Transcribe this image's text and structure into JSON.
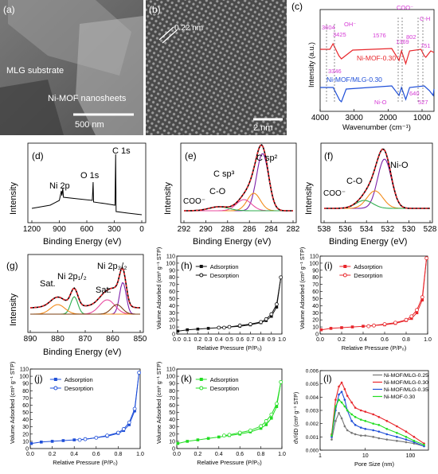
{
  "panels": {
    "a": {
      "label": "(a)",
      "labels": {
        "substrate": "MLG substrate",
        "sheets": "Ni-MOF nanosheets",
        "scale": "500 nm"
      }
    },
    "b": {
      "label": "(b)",
      "labels": {
        "spacing": "0.22 nm",
        "scale": "2 nm"
      }
    },
    "c": {
      "label": "(c)",
      "type": "line",
      "ylabel": "Intensity (a.u.)",
      "xlabel": "Wavenumber (cm⁻¹)",
      "xticks": [
        "4000",
        "3000",
        "2000",
        "1000"
      ],
      "xlim": [
        4000,
        500
      ],
      "series": [
        {
          "name": "Ni-MOF-0.30",
          "color": "#e8262b"
        },
        {
          "name": "Ni-MOF/MLG-0.30",
          "color": "#1f4fd8"
        }
      ],
      "peaks": [
        "3604",
        "OH⁻",
        "3425",
        "3346",
        "1576",
        "COO⁻",
        "1369",
        "802",
        "C-H",
        "751",
        "640",
        "Ni-O",
        "527"
      ],
      "peak_color": "#d63bd6"
    },
    "d": {
      "label": "(d)",
      "type": "line",
      "ylabel": "Intensity",
      "xlabel": "Binding Energy (eV)",
      "xticks": [
        "1200",
        "900",
        "600",
        "300",
        "0"
      ],
      "xlim": [
        1200,
        0
      ],
      "annotations": [
        "Ni 2p",
        "O 1s",
        "C 1s"
      ]
    },
    "e": {
      "label": "(e)",
      "type": "line",
      "ylabel": "Intensity",
      "xlabel": "Binding Energy (eV)",
      "xticks": [
        "292",
        "290",
        "288",
        "286",
        "284",
        "282"
      ],
      "xlim": [
        292,
        282
      ],
      "annotations": [
        "C sp²",
        "C sp³",
        "C-O",
        "COO⁻"
      ]
    },
    "f": {
      "label": "(f)",
      "type": "line",
      "ylabel": "Intensity",
      "xlabel": "Binding Energy (eV)",
      "xticks": [
        "538",
        "536",
        "534",
        "532",
        "530",
        "528"
      ],
      "xlim": [
        538,
        528
      ],
      "annotations": [
        "Ni-O",
        "C-O",
        "COO⁻"
      ]
    },
    "g": {
      "label": "(g)",
      "type": "line",
      "ylabel": "Intensity",
      "xlabel": "Binding Energy (eV)",
      "xticks": [
        "890",
        "880",
        "870",
        "860",
        "850"
      ],
      "xlim": [
        890,
        850
      ],
      "annotations": [
        "Sat.",
        "Ni 2p₁/₂",
        "Sat.",
        "Ni 2p₃/₂"
      ]
    },
    "h": {
      "label": "(h)",
      "color": "#111111",
      "ylabel": "Volume Adsorbed (cm³ g⁻¹ STP)",
      "xlabel": "Relative Pressure (P/P₀)",
      "legend": [
        "Adsorption",
        "Desorption"
      ],
      "xticks": [
        "0.0",
        "0.1",
        "0.2",
        "0.3",
        "0.4",
        "0.5",
        "0.6",
        "0.7",
        "0.8",
        "0.9",
        "1.0"
      ],
      "yticks": [
        "0",
        "10",
        "20",
        "30",
        "40",
        "50",
        "60",
        "70",
        "80",
        "90",
        "100",
        "110"
      ],
      "ylim": [
        0,
        110
      ],
      "ymax_reached": 80
    },
    "i": {
      "label": "(i)",
      "color": "#e8262b",
      "ylabel": "Volume Adsorbed (cm³ g⁻¹ STP)",
      "xlabel": "Relative Pressure (P/P₀)",
      "legend": [
        "Adsorption",
        "Desorption"
      ],
      "xticks": [
        "0.0",
        "0.2",
        "0.4",
        "0.6",
        "0.8",
        "1.0"
      ],
      "yticks": [
        "0",
        "10",
        "20",
        "30",
        "40",
        "50",
        "60",
        "70",
        "80",
        "90",
        "100",
        "110"
      ],
      "ylim": [
        0,
        110
      ],
      "ymax_reached": 107
    },
    "j": {
      "label": "(j)",
      "color": "#1f4fd8",
      "ylabel": "Volume Adsorbed (cm³ g⁻¹ STP)",
      "xlabel": "Relative Pressure (P/P₀)",
      "legend": [
        "Adsorption",
        "Desorption"
      ],
      "xticks": [
        "0.0",
        "0.2",
        "0.4",
        "0.6",
        "0.8",
        "1.0"
      ],
      "yticks": [
        "0",
        "10",
        "20",
        "30",
        "40",
        "50",
        "60",
        "70",
        "80",
        "90",
        "100",
        "110"
      ],
      "ylim": [
        0,
        110
      ],
      "ymax_reached": 105
    },
    "k": {
      "label": "(k)",
      "color": "#22dd22",
      "ylabel": "Volume Adsorbed (cm³ g⁻¹ STP)",
      "xlabel": "Relative Pressure (P/P₀)",
      "legend": [
        "Adsorption",
        "Desorption"
      ],
      "xticks": [
        "0.0",
        "0.2",
        "0.4",
        "0.6",
        "0.8",
        "1.0"
      ],
      "yticks": [
        "0",
        "10",
        "20",
        "30",
        "40",
        "50",
        "60",
        "70",
        "80",
        "90",
        "100",
        "110"
      ],
      "ylim": [
        0,
        110
      ],
      "ymax_reached": 92
    },
    "l": {
      "label": "(l)",
      "ylabel": "dV/dD (cm³ g⁻¹ STP)",
      "xlabel": "Pore Size (nm)",
      "xticks": [
        "1",
        "10",
        "100"
      ],
      "yticks": [
        "0.000",
        "0.001",
        "0.002",
        "0.003",
        "0.004",
        "0.005",
        "0.006"
      ],
      "ylim": [
        0,
        0.006
      ],
      "series": [
        {
          "name": "Ni-MOF/MLG-0.25",
          "color": "#777777"
        },
        {
          "name": "Ni-MOF/MLG-0.30",
          "color": "#e8262b"
        },
        {
          "name": "Ni-MOF/MLG-0.35",
          "color": "#1f4fd8"
        },
        {
          "name": "Ni-MOF-0.30",
          "color": "#22dd22"
        }
      ]
    }
  },
  "chart_data": [
    {
      "type": "line",
      "panel": "c",
      "xlabel": "Wavenumber (cm⁻¹)",
      "ylabel": "Intensity (a.u.)",
      "xlim": [
        4000,
        500
      ],
      "series": [
        {
          "name": "Ni-MOF-0.30",
          "peaks": [
            3604,
            3425,
            3346,
            1576,
            1369,
            802,
            751
          ]
        },
        {
          "name": "Ni-MOF/MLG-0.30",
          "peaks": [
            3346,
            1576,
            1369,
            640,
            527
          ]
        }
      ]
    },
    {
      "type": "line",
      "panel": "d",
      "xlabel": "Binding Energy (eV)",
      "ylabel": "Intensity",
      "xlim": [
        1200,
        0
      ],
      "series": [
        {
          "name": "",
          "peaks": [
            {
              "x": 860,
              "label": "Ni 2p"
            },
            {
              "x": 531,
              "label": "O 1s"
            },
            {
              "x": 285,
              "label": "C 1s"
            }
          ]
        }
      ]
    },
    {
      "type": "line",
      "panel": "e",
      "xlabel": "Binding Energy (eV)",
      "ylabel": "Intensity",
      "xlim": [
        292,
        282
      ],
      "series": [
        {
          "name": "",
          "peaks": [
            {
              "x": 284.8,
              "label": "C sp²"
            },
            {
              "x": 285.6,
              "label": "C sp³"
            },
            {
              "x": 286.5,
              "label": "C-O"
            },
            {
              "x": 288.8,
              "label": "COO⁻"
            }
          ]
        }
      ]
    },
    {
      "type": "line",
      "panel": "f",
      "xlabel": "Binding Energy (eV)",
      "ylabel": "Intensity",
      "xlim": [
        538,
        528
      ],
      "series": [
        {
          "name": "",
          "peaks": [
            {
              "x": 532.3,
              "label": "Ni-O"
            },
            {
              "x": 533.2,
              "label": "C-O"
            },
            {
              "x": 534.2,
              "label": "COO⁻"
            }
          ]
        }
      ]
    },
    {
      "type": "line",
      "panel": "g",
      "xlabel": "Binding Energy (eV)",
      "ylabel": "Intensity",
      "xlim": [
        890,
        850
      ],
      "series": [
        {
          "name": "",
          "peaks": [
            {
              "x": 880,
              "label": "Sat."
            },
            {
              "x": 874,
              "label": "Ni 2p₁/₂"
            },
            {
              "x": 862,
              "label": "Sat."
            },
            {
              "x": 856.5,
              "label": "Ni 2p₃/₂"
            }
          ]
        }
      ]
    },
    {
      "type": "scatter",
      "panel": "h",
      "xlabel": "Relative Pressure (P/P₀)",
      "ylabel": "Volume Adsorbed (cm³ g⁻¹ STP)",
      "xlim": [
        0,
        1
      ],
      "ylim": [
        0,
        110
      ],
      "series": [
        {
          "name": "Adsorption",
          "x": [
            0.01,
            0.1,
            0.2,
            0.3,
            0.4,
            0.5,
            0.6,
            0.7,
            0.8,
            0.85,
            0.9,
            0.95,
            0.99
          ],
          "y": [
            4,
            6,
            7,
            8,
            9,
            10,
            11,
            13,
            16,
            19,
            25,
            38,
            80
          ]
        },
        {
          "name": "Desorption",
          "x": [
            0.99,
            0.95,
            0.9,
            0.85,
            0.8,
            0.7,
            0.6,
            0.5,
            0.45,
            0.4
          ],
          "y": [
            80,
            42,
            28,
            21,
            17,
            14,
            12,
            10,
            9,
            9
          ]
        }
      ]
    },
    {
      "type": "scatter",
      "panel": "i",
      "xlabel": "Relative Pressure (P/P₀)",
      "ylabel": "Volume Adsorbed (cm³ g⁻¹ STP)",
      "xlim": [
        0,
        1
      ],
      "ylim": [
        0,
        110
      ],
      "series": [
        {
          "name": "Adsorption",
          "x": [
            0.01,
            0.1,
            0.2,
            0.3,
            0.4,
            0.5,
            0.6,
            0.7,
            0.8,
            0.85,
            0.9,
            0.95,
            0.99
          ],
          "y": [
            6,
            8,
            9,
            10,
            11,
            12,
            13,
            15,
            19,
            22,
            30,
            48,
            107
          ]
        },
        {
          "name": "Desorption",
          "x": [
            0.99,
            0.95,
            0.9,
            0.85,
            0.8,
            0.7,
            0.6,
            0.5,
            0.45
          ],
          "y": [
            107,
            52,
            34,
            25,
            20,
            16,
            14,
            12,
            11
          ]
        }
      ]
    },
    {
      "type": "scatter",
      "panel": "j",
      "xlabel": "Relative Pressure (P/P₀)",
      "ylabel": "Volume Adsorbed (cm³ g⁻¹ STP)",
      "xlim": [
        0,
        1
      ],
      "ylim": [
        0,
        110
      ],
      "series": [
        {
          "name": "Adsorption",
          "x": [
            0.01,
            0.1,
            0.2,
            0.3,
            0.4,
            0.5,
            0.6,
            0.7,
            0.8,
            0.85,
            0.9,
            0.95,
            0.99
          ],
          "y": [
            7,
            9,
            10,
            11,
            12,
            13,
            15,
            17,
            21,
            25,
            33,
            52,
            105
          ]
        },
        {
          "name": "Desorption",
          "x": [
            0.99,
            0.95,
            0.9,
            0.85,
            0.8,
            0.7,
            0.6,
            0.5,
            0.45
          ],
          "y": [
            105,
            55,
            36,
            27,
            22,
            18,
            15,
            13,
            12
          ]
        }
      ]
    },
    {
      "type": "scatter",
      "panel": "k",
      "xlabel": "Relative Pressure (P/P₀)",
      "ylabel": "Volume Adsorbed (cm³ g⁻¹ STP)",
      "xlim": [
        0,
        1
      ],
      "ylim": [
        0,
        110
      ],
      "series": [
        {
          "name": "Adsorption",
          "x": [
            0.01,
            0.1,
            0.2,
            0.3,
            0.4,
            0.5,
            0.6,
            0.7,
            0.8,
            0.85,
            0.9,
            0.95,
            0.99
          ],
          "y": [
            7,
            10,
            12,
            14,
            16,
            18,
            20,
            23,
            28,
            33,
            42,
            58,
            92
          ]
        },
        {
          "name": "Desorption",
          "x": [
            0.99,
            0.95,
            0.9,
            0.85,
            0.8,
            0.7,
            0.6,
            0.5,
            0.45
          ],
          "y": [
            92,
            62,
            47,
            38,
            31,
            25,
            22,
            19,
            18
          ]
        }
      ]
    },
    {
      "type": "line",
      "panel": "l",
      "xlabel": "Pore Size (nm)",
      "ylabel": "dV/dD (cm³ g⁻¹ STP)",
      "xscale": "log",
      "xlim": [
        1,
        200
      ],
      "ylim": [
        0,
        0.006
      ],
      "series": [
        {
          "name": "Ni-MOF/MLG-0.25",
          "x": [
            1.8,
            2.2,
            2.6,
            3,
            3.5,
            4,
            5,
            6,
            8,
            10,
            15,
            20,
            30,
            50,
            80,
            120,
            200
          ],
          "y": [
            0.0008,
            0.0022,
            0.0028,
            0.0024,
            0.0018,
            0.0015,
            0.0013,
            0.0012,
            0.0011,
            0.0011,
            0.001,
            0.0009,
            0.0008,
            0.0007,
            0.0006,
            0.0005,
            0.0003
          ]
        },
        {
          "name": "Ni-MOF/MLG-0.30",
          "x": [
            1.8,
            2.2,
            2.6,
            3,
            3.5,
            4,
            5,
            6,
            8,
            10,
            15,
            20,
            30,
            50,
            80,
            120,
            200
          ],
          "y": [
            0.0012,
            0.0038,
            0.0048,
            0.0051,
            0.0046,
            0.0041,
            0.0036,
            0.0032,
            0.003,
            0.0029,
            0.0027,
            0.0025,
            0.0022,
            0.0018,
            0.0014,
            0.001,
            0.0005
          ]
        },
        {
          "name": "Ni-MOF/MLG-0.35",
          "x": [
            1.8,
            2.2,
            2.6,
            3,
            3.5,
            4,
            5,
            6,
            8,
            10,
            15,
            20,
            30,
            50,
            80,
            120,
            200
          ],
          "y": [
            0.001,
            0.003,
            0.0042,
            0.0044,
            0.0038,
            0.003,
            0.0022,
            0.0019,
            0.0017,
            0.0016,
            0.0015,
            0.0014,
            0.0012,
            0.001,
            0.0008,
            0.0006,
            0.0003
          ]
        },
        {
          "name": "Ni-MOF-0.30",
          "x": [
            1.8,
            2.2,
            2.6,
            3,
            3.5,
            4,
            5,
            6,
            8,
            10,
            15,
            20,
            30,
            50,
            80,
            120,
            200
          ],
          "y": [
            0.0011,
            0.0033,
            0.0038,
            0.0036,
            0.0033,
            0.003,
            0.0027,
            0.0025,
            0.0023,
            0.0022,
            0.002,
            0.0019,
            0.0016,
            0.0013,
            0.001,
            0.0007,
            0.0004
          ]
        }
      ]
    }
  ]
}
